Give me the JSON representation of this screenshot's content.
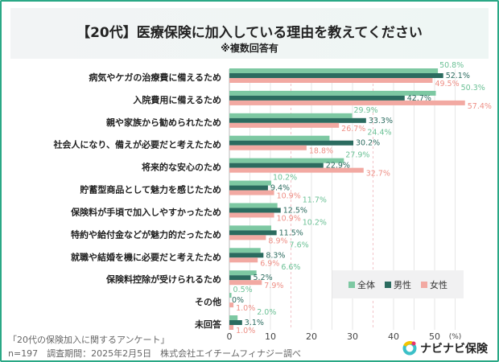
{
  "title": "【20代】医療保険に加入している理由を教えてください",
  "subtitle": "※複数回答有",
  "footer": {
    "source": "「20代の保険加入に関するアンケート」",
    "details": "n=197　調査期間：2025年2月5日　株式会社エイチームフィナジー調べ"
  },
  "logo_text": "ナビナビ保険",
  "chart_data": {
    "type": "bar",
    "orientation": "horizontal",
    "categories": [
      "病気やケガの治療費に備えるため",
      "入院費用に備えるため",
      "親や家族から勧められたため",
      "社会人になり、備えが必要だと考えたため",
      "将来的な安心のため",
      "貯蓄型商品として魅力を感じたため",
      "保険料が手頃で加入しやすかったため",
      "特約や給付金などが魅力的だったため",
      "就職や結婚を機に必要だと考えたため",
      "保険料控除が受けられるため",
      "その他",
      "未回答"
    ],
    "series": [
      {
        "name": "全体",
        "color": "#7dc8a2",
        "values": [
          50.8,
          50.3,
          29.9,
          24.4,
          27.9,
          10.2,
          11.7,
          10.2,
          7.6,
          6.6,
          0.5,
          2.0
        ],
        "labels": [
          "50.8%",
          "50.3%",
          "29.9%",
          "24.4%",
          "27.9%",
          "10.2%",
          "11.7%",
          "10.2%",
          "7.6%",
          "6.6%",
          "0.5%",
          "2.0%"
        ]
      },
      {
        "name": "男性",
        "color": "#2b6b5f",
        "values": [
          52.1,
          42.7,
          33.3,
          30.2,
          22.9,
          9.4,
          12.5,
          11.5,
          8.3,
          5.2,
          0,
          3.1
        ],
        "labels": [
          "52.1%",
          "42.7%",
          "33.3%",
          "30.2%",
          "22.9%",
          "9.4%",
          "12.5%",
          "11.5%",
          "8.3%",
          "5.2%",
          "0%",
          "3.1%"
        ]
      },
      {
        "name": "女性",
        "color": "#f2a9a2",
        "values": [
          49.5,
          57.4,
          26.7,
          18.8,
          32.7,
          10.9,
          10.9,
          8.9,
          6.9,
          7.9,
          1.0,
          1.0
        ],
        "labels": [
          "49.5%",
          "57.4%",
          "26.7%",
          "18.8%",
          "32.7%",
          "10.9%",
          "10.9%",
          "8.9%",
          "6.9%",
          "7.9%",
          "1.0%",
          "1.0%"
        ]
      }
    ],
    "x_ticks": [
      "0",
      "10",
      "20",
      "30",
      "40",
      "50"
    ],
    "x_unit": "(%)",
    "xlim": [
      0,
      60
    ],
    "grid": true,
    "legend_position": "bottom-right"
  }
}
